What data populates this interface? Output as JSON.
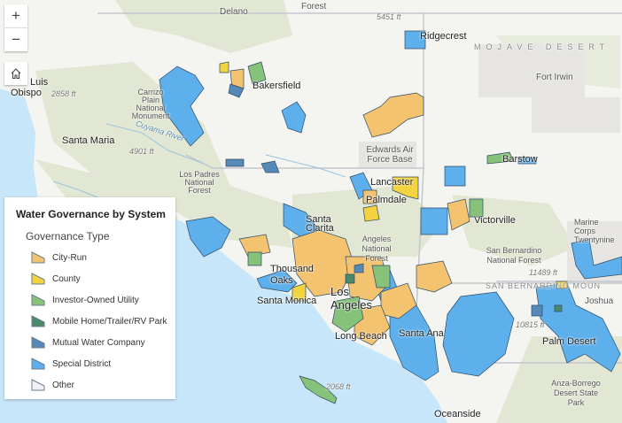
{
  "legend": {
    "title": "Water Governance by System",
    "subtitle": "Governance Type",
    "items": [
      {
        "label": "City-Run",
        "color": "#f4c36f"
      },
      {
        "label": "County",
        "color": "#f3d33f"
      },
      {
        "label": "Investor-Owned Utility",
        "color": "#86c27a"
      },
      {
        "label": "Mobile Home/Trailer/RV Park",
        "color": "#4a8a6c"
      },
      {
        "label": "Mutual Water Company",
        "color": "#5689b8"
      },
      {
        "label": "Special District",
        "color": "#5eb0ec"
      },
      {
        "label": "Other",
        "color": "#eef2f6"
      }
    ]
  },
  "controls": {
    "zoom_in": "+",
    "zoom_out": "−",
    "home_icon": "home-icon"
  },
  "map_labels": {
    "delano": "Delano",
    "forest_top": "Forest",
    "elev_5451": "5451 ft",
    "ridgecrest": "Ridgecrest",
    "mojave": "MOJAVE DESERT",
    "fort_irwin": "Fort Irwin",
    "san_luis": "Luis",
    "obispo": "Obispo",
    "elev_2858": "2858 ft",
    "carrizo": "Carrizo Plain National Monument",
    "bakersfield": "Bakersfield",
    "santa_maria": "Santa Maria",
    "elev_4901": "4901 ft",
    "cuyama": "Cuyama River",
    "edwards": "Edwards Air Force Base",
    "barstow": "Barstow",
    "los_padres": "Los Padres National Forest",
    "lancaster": "Lancaster",
    "palmdale": "Palmdale",
    "santa_clarita": "Santa Clarita",
    "angeles": "Angeles National Forest",
    "victorville": "Victorville",
    "san_bernardino_nf": "San Bernardino National Forest",
    "marine_corps": "Marine Corps Twentynine",
    "elev_11489": "11489 ft",
    "sb_mountains": "SAN BERNARDINO MOUN",
    "thousand_oaks": "Thousand Oaks",
    "santa_monica": "Santa Monica",
    "los_angeles": "Los Angeles",
    "long_beach": "Long Beach",
    "santa_ana": "Santa Ana",
    "elev_10815": "10815 ft",
    "palm_desert": "Palm Desert",
    "anza_borrego": "Anza-Borrego Desert State Park",
    "elev_2068": "2068 ft",
    "oceanside": "Oceanside",
    "joshua": "Joshua"
  }
}
